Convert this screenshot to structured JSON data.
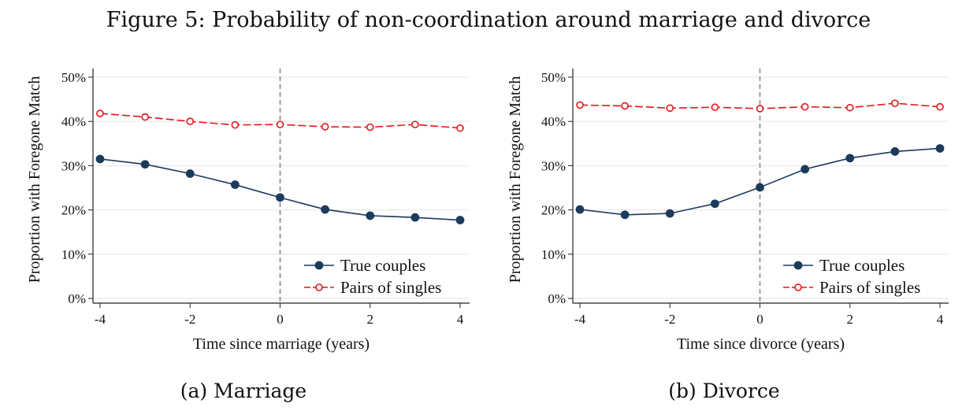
{
  "figure": {
    "title": "Figure 5: Probability of non-coordination around marriage and divorce"
  },
  "colors": {
    "true_couples": "#1b3a5c",
    "pairs_of_singles": "#e4161b",
    "grid": "#e6e6e6",
    "vline": "#888888"
  },
  "chart_data": [
    {
      "type": "line",
      "caption": "(a) Marriage",
      "xlabel": "Time since marriage (years)",
      "ylabel": "Proportion with Foregone Match",
      "xlim": [
        -4,
        4
      ],
      "ylim": [
        0,
        50
      ],
      "xticks": [
        -4,
        -2,
        0,
        2,
        4
      ],
      "xtick_labels": [
        "-4",
        "-2",
        "0",
        "2",
        "4"
      ],
      "yticks": [
        0,
        10,
        20,
        30,
        40,
        50
      ],
      "ytick_labels": [
        "0%",
        "10%",
        "20%",
        "30%",
        "40%",
        "50%"
      ],
      "vline_x": 0,
      "legend_position": "bottom-right",
      "x": [
        -4,
        -3,
        -2,
        -1,
        0,
        1,
        2,
        3,
        4
      ],
      "series": [
        {
          "name": "True couples",
          "values": [
            31.5,
            30.3,
            28.2,
            25.7,
            22.8,
            20.1,
            18.7,
            18.3,
            17.7
          ]
        },
        {
          "name": "Pairs of singles",
          "values": [
            41.8,
            41.0,
            40.0,
            39.2,
            39.3,
            38.8,
            38.7,
            39.3,
            38.5
          ]
        }
      ]
    },
    {
      "type": "line",
      "caption": "(b) Divorce",
      "xlabel": "Time since divorce (years)",
      "ylabel": "Proportion with Foregone Match",
      "xlim": [
        -4,
        4
      ],
      "ylim": [
        0,
        50
      ],
      "xticks": [
        -4,
        -2,
        0,
        2,
        4
      ],
      "xtick_labels": [
        "-4",
        "-2",
        "0",
        "2",
        "4"
      ],
      "yticks": [
        0,
        10,
        20,
        30,
        40,
        50
      ],
      "ytick_labels": [
        "0%",
        "10%",
        "20%",
        "30%",
        "40%",
        "50%"
      ],
      "vline_x": 0,
      "legend_position": "bottom-right",
      "x": [
        -4,
        -3,
        -2,
        -1,
        0,
        1,
        2,
        3,
        4
      ],
      "series": [
        {
          "name": "True couples",
          "values": [
            20.1,
            18.9,
            19.2,
            21.4,
            25.1,
            29.2,
            31.7,
            33.2,
            33.9
          ]
        },
        {
          "name": "Pairs of singles",
          "values": [
            43.7,
            43.5,
            43.0,
            43.2,
            42.9,
            43.3,
            43.1,
            44.1,
            43.3
          ]
        }
      ]
    }
  ]
}
